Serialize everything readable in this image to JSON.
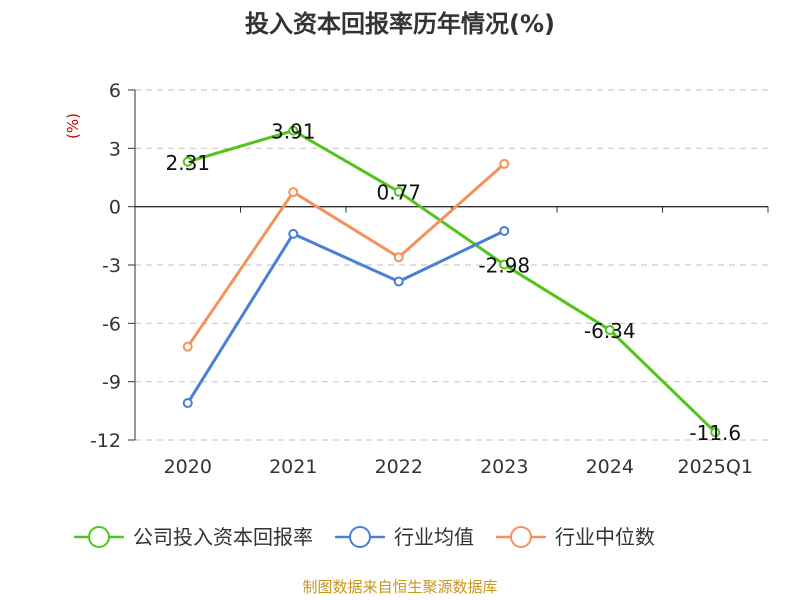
{
  "chart_data": {
    "type": "line",
    "title": "投入资本回报率历年情况(%)",
    "ylabel": "(%)",
    "categories": [
      "2020",
      "2021",
      "2022",
      "2023",
      "2024",
      "2025Q1"
    ],
    "ylim": [
      -12,
      6
    ],
    "yticks": [
      "6",
      "3",
      "0",
      "-3",
      "-6",
      "-9",
      "-12"
    ],
    "ytick_values": [
      6,
      3,
      0,
      -3,
      -6,
      -9,
      -12
    ],
    "grid": true,
    "legend_position": "bottom",
    "series": [
      {
        "name": "公司投入资本回报率",
        "color": "#52c41a",
        "values": [
          2.31,
          3.91,
          0.77,
          -2.98,
          -6.34,
          -11.6
        ],
        "labels": [
          "2.31",
          "3.91",
          "0.77",
          "-2.98",
          "-6.34",
          "-11.6"
        ]
      },
      {
        "name": "行业均值",
        "color": "#4a7fd6",
        "values": [
          -10.1,
          -1.4,
          -3.85,
          -1.25,
          null,
          null
        ]
      },
      {
        "name": "行业中位数",
        "color": "#f5915a",
        "values": [
          -7.2,
          0.75,
          -2.6,
          2.2,
          null,
          null
        ]
      }
    ]
  },
  "source": "制图数据来自恒生聚源数据库"
}
